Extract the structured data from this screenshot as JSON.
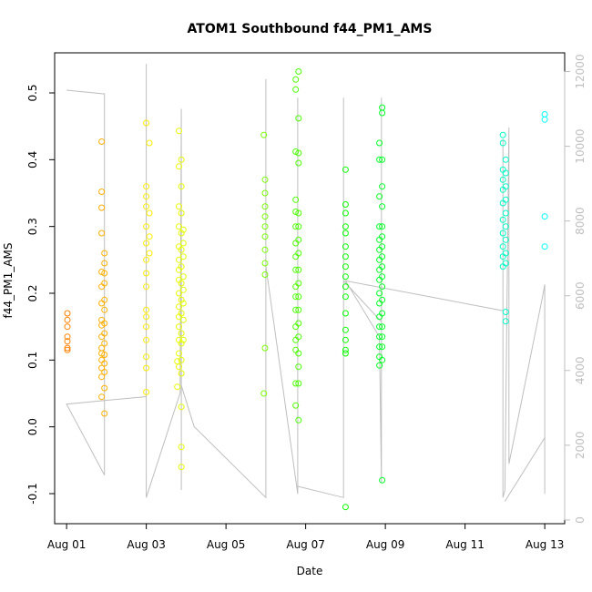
{
  "chart_data": {
    "type": "scatter",
    "title": "ATOM1 Southbound f44_PM1_AMS",
    "xlabel": "Date",
    "ylabel": "f44_PM1_AMS",
    "x_unit": "days since Aug 01",
    "xlim": [
      -0.3,
      12.5
    ],
    "ylim": [
      -0.145,
      0.56
    ],
    "x_ticks": [
      0,
      2,
      4,
      6,
      8,
      10,
      12
    ],
    "x_tick_labels": [
      "Aug 01",
      "Aug 03",
      "Aug 05",
      "Aug 07",
      "Aug 09",
      "Aug 11",
      "Aug 13"
    ],
    "y_ticks": [
      -0.1,
      0.0,
      0.1,
      0.2,
      0.3,
      0.4,
      0.5
    ],
    "y_tick_labels": [
      "-0.1",
      "0.0",
      "0.1",
      "0.2",
      "0.3",
      "0.4",
      "0.5"
    ],
    "secondary_y": {
      "ylim": [
        -100,
        12500
      ],
      "ticks": [
        0,
        2000,
        4000,
        6000,
        8000,
        10000,
        12000
      ],
      "tick_labels": [
        "0",
        "2000",
        "4000",
        "6000",
        "8000",
        "10000",
        "12000"
      ],
      "color": "#bebebe"
    },
    "grid": false,
    "color_note": "marker hue runs orange to cyan over time",
    "series": [
      {
        "name": "f44_PM1_AMS",
        "marker": "open-circle",
        "points": [
          [
            0.02,
            0.17
          ],
          [
            0.02,
            0.16
          ],
          [
            0.02,
            0.15
          ],
          [
            0.02,
            0.135
          ],
          [
            0.02,
            0.128
          ],
          [
            0.02,
            0.118
          ],
          [
            0.02,
            0.115
          ],
          [
            0.88,
            0.427
          ],
          [
            0.88,
            0.352
          ],
          [
            0.88,
            0.328
          ],
          [
            0.88,
            0.29
          ],
          [
            0.88,
            0.232
          ],
          [
            0.88,
            0.21
          ],
          [
            0.88,
            0.185
          ],
          [
            0.88,
            0.16
          ],
          [
            0.88,
            0.152
          ],
          [
            0.88,
            0.135
          ],
          [
            0.88,
            0.118
          ],
          [
            0.88,
            0.11
          ],
          [
            0.88,
            0.1
          ],
          [
            0.88,
            0.088
          ],
          [
            0.88,
            0.075
          ],
          [
            0.88,
            0.045
          ],
          [
            0.95,
            0.26
          ],
          [
            0.95,
            0.245
          ],
          [
            0.95,
            0.23
          ],
          [
            0.95,
            0.215
          ],
          [
            0.95,
            0.19
          ],
          [
            0.95,
            0.175
          ],
          [
            0.95,
            0.155
          ],
          [
            0.95,
            0.14
          ],
          [
            0.95,
            0.125
          ],
          [
            0.95,
            0.108
          ],
          [
            0.95,
            0.095
          ],
          [
            0.95,
            0.082
          ],
          [
            0.95,
            0.058
          ],
          [
            0.95,
            0.02
          ],
          [
            2.0,
            0.455
          ],
          [
            2.0,
            0.36
          ],
          [
            2.0,
            0.345
          ],
          [
            2.0,
            0.33
          ],
          [
            2.0,
            0.3
          ],
          [
            2.0,
            0.275
          ],
          [
            2.0,
            0.25
          ],
          [
            2.0,
            0.23
          ],
          [
            2.0,
            0.21
          ],
          [
            2.0,
            0.175
          ],
          [
            2.0,
            0.165
          ],
          [
            2.0,
            0.15
          ],
          [
            2.0,
            0.13
          ],
          [
            2.0,
            0.105
          ],
          [
            2.0,
            0.088
          ],
          [
            2.0,
            0.052
          ],
          [
            2.08,
            0.425
          ],
          [
            2.08,
            0.32
          ],
          [
            2.08,
            0.285
          ],
          [
            2.08,
            0.26
          ],
          [
            2.78,
            0.098
          ],
          [
            2.78,
            0.06
          ],
          [
            2.82,
            0.443
          ],
          [
            2.82,
            0.39
          ],
          [
            2.82,
            0.33
          ],
          [
            2.82,
            0.3
          ],
          [
            2.82,
            0.27
          ],
          [
            2.82,
            0.25
          ],
          [
            2.82,
            0.235
          ],
          [
            2.82,
            0.22
          ],
          [
            2.82,
            0.2
          ],
          [
            2.82,
            0.18
          ],
          [
            2.82,
            0.165
          ],
          [
            2.82,
            0.15
          ],
          [
            2.82,
            0.13
          ],
          [
            2.82,
            0.11
          ],
          [
            2.82,
            0.09
          ],
          [
            2.88,
            0.4
          ],
          [
            2.88,
            0.36
          ],
          [
            2.88,
            0.32
          ],
          [
            2.88,
            0.29
          ],
          [
            2.88,
            0.265
          ],
          [
            2.88,
            0.24
          ],
          [
            2.88,
            0.215
          ],
          [
            2.88,
            0.19
          ],
          [
            2.88,
            0.17
          ],
          [
            2.88,
            0.14
          ],
          [
            2.88,
            0.125
          ],
          [
            2.88,
            0.1
          ],
          [
            2.88,
            0.08
          ],
          [
            2.88,
            0.03
          ],
          [
            2.88,
            -0.03
          ],
          [
            2.88,
            -0.06
          ],
          [
            2.93,
            0.295
          ],
          [
            2.93,
            0.275
          ],
          [
            2.93,
            0.255
          ],
          [
            2.93,
            0.225
          ],
          [
            2.93,
            0.205
          ],
          [
            2.93,
            0.185
          ],
          [
            2.93,
            0.16
          ],
          [
            2.93,
            0.13
          ],
          [
            4.95,
            0.437
          ],
          [
            4.95,
            0.05
          ],
          [
            4.98,
            0.37
          ],
          [
            4.98,
            0.35
          ],
          [
            4.98,
            0.33
          ],
          [
            4.98,
            0.315
          ],
          [
            4.98,
            0.3
          ],
          [
            4.98,
            0.285
          ],
          [
            4.98,
            0.265
          ],
          [
            4.98,
            0.245
          ],
          [
            4.98,
            0.228
          ],
          [
            4.98,
            0.118
          ],
          [
            5.75,
            0.52
          ],
          [
            5.75,
            0.505
          ],
          [
            5.75,
            0.412
          ],
          [
            5.75,
            0.34
          ],
          [
            5.75,
            0.322
          ],
          [
            5.75,
            0.3
          ],
          [
            5.75,
            0.275
          ],
          [
            5.75,
            0.255
          ],
          [
            5.75,
            0.235
          ],
          [
            5.75,
            0.21
          ],
          [
            5.75,
            0.195
          ],
          [
            5.75,
            0.175
          ],
          [
            5.75,
            0.15
          ],
          [
            5.75,
            0.13
          ],
          [
            5.75,
            0.115
          ],
          [
            5.75,
            0.065
          ],
          [
            5.75,
            0.032
          ],
          [
            5.82,
            0.532
          ],
          [
            5.82,
            0.462
          ],
          [
            5.82,
            0.41
          ],
          [
            5.82,
            0.395
          ],
          [
            5.82,
            0.32
          ],
          [
            5.82,
            0.3
          ],
          [
            5.82,
            0.28
          ],
          [
            5.82,
            0.26
          ],
          [
            5.82,
            0.235
          ],
          [
            5.82,
            0.215
          ],
          [
            5.82,
            0.195
          ],
          [
            5.82,
            0.175
          ],
          [
            5.82,
            0.155
          ],
          [
            5.82,
            0.135
          ],
          [
            5.82,
            0.11
          ],
          [
            5.82,
            0.09
          ],
          [
            5.82,
            0.065
          ],
          [
            5.82,
            0.01
          ],
          [
            7.0,
            0.385
          ],
          [
            7.0,
            0.333
          ],
          [
            7.0,
            0.32
          ],
          [
            7.0,
            0.3
          ],
          [
            7.0,
            0.29
          ],
          [
            7.0,
            0.27
          ],
          [
            7.0,
            0.255
          ],
          [
            7.0,
            0.24
          ],
          [
            7.0,
            0.225
          ],
          [
            7.0,
            0.21
          ],
          [
            7.0,
            0.195
          ],
          [
            7.0,
            0.17
          ],
          [
            7.0,
            0.145
          ],
          [
            7.0,
            0.13
          ],
          [
            7.0,
            0.115
          ],
          [
            7.0,
            0.11
          ],
          [
            7.0,
            -0.12
          ],
          [
            7.85,
            0.425
          ],
          [
            7.85,
            0.4
          ],
          [
            7.85,
            0.345
          ],
          [
            7.85,
            0.3
          ],
          [
            7.85,
            0.28
          ],
          [
            7.85,
            0.265
          ],
          [
            7.85,
            0.25
          ],
          [
            7.85,
            0.235
          ],
          [
            7.85,
            0.22
          ],
          [
            7.85,
            0.2
          ],
          [
            7.85,
            0.185
          ],
          [
            7.85,
            0.165
          ],
          [
            7.85,
            0.15
          ],
          [
            7.85,
            0.135
          ],
          [
            7.85,
            0.12
          ],
          [
            7.85,
            0.105
          ],
          [
            7.85,
            0.092
          ],
          [
            7.92,
            0.478
          ],
          [
            7.92,
            0.47
          ],
          [
            7.92,
            0.4
          ],
          [
            7.92,
            0.36
          ],
          [
            7.92,
            0.33
          ],
          [
            7.92,
            0.3
          ],
          [
            7.92,
            0.285
          ],
          [
            7.92,
            0.27
          ],
          [
            7.92,
            0.255
          ],
          [
            7.92,
            0.24
          ],
          [
            7.92,
            0.225
          ],
          [
            7.92,
            0.21
          ],
          [
            7.92,
            0.19
          ],
          [
            7.92,
            0.17
          ],
          [
            7.92,
            0.15
          ],
          [
            7.92,
            0.135
          ],
          [
            7.92,
            0.12
          ],
          [
            7.92,
            0.1
          ],
          [
            7.92,
            -0.08
          ],
          [
            10.95,
            0.437
          ],
          [
            10.95,
            0.425
          ],
          [
            10.95,
            0.385
          ],
          [
            10.95,
            0.37
          ],
          [
            10.95,
            0.355
          ],
          [
            10.95,
            0.335
          ],
          [
            10.95,
            0.31
          ],
          [
            10.95,
            0.29
          ],
          [
            10.95,
            0.27
          ],
          [
            10.95,
            0.255
          ],
          [
            10.95,
            0.24
          ],
          [
            11.02,
            0.4
          ],
          [
            11.02,
            0.38
          ],
          [
            11.02,
            0.36
          ],
          [
            11.02,
            0.34
          ],
          [
            11.02,
            0.32
          ],
          [
            11.02,
            0.3
          ],
          [
            11.02,
            0.28
          ],
          [
            11.02,
            0.26
          ],
          [
            11.02,
            0.245
          ],
          [
            11.02,
            0.172
          ],
          [
            11.02,
            0.158
          ],
          [
            12.0,
            0.468
          ],
          [
            12.0,
            0.46
          ],
          [
            12.0,
            0.315
          ],
          [
            12.0,
            0.27
          ]
        ]
      },
      {
        "name": "secondary (gray line)",
        "axis": "right",
        "color": "#bebebe",
        "points": [
          [
            0.0,
            11500
          ],
          [
            0.95,
            11400
          ],
          [
            0.95,
            1800
          ],
          [
            0.95,
            11400
          ],
          [
            0.95,
            1200
          ],
          [
            0.0,
            3100
          ],
          [
            2.0,
            3300
          ],
          [
            2.0,
            12200
          ],
          [
            2.0,
            600
          ],
          [
            2.85,
            3400
          ],
          [
            2.88,
            11000
          ],
          [
            2.88,
            800
          ],
          [
            2.88,
            3600
          ],
          [
            3.2,
            2500
          ],
          [
            5.0,
            600
          ],
          [
            5.0,
            11800
          ],
          [
            5.0,
            6800
          ],
          [
            5.8,
            700
          ],
          [
            5.8,
            11300
          ],
          [
            5.8,
            900
          ],
          [
            6.95,
            600
          ],
          [
            6.95,
            11300
          ],
          [
            6.95,
            6400
          ],
          [
            7.9,
            5300
          ],
          [
            7.9,
            11300
          ],
          [
            7.9,
            1000
          ],
          [
            7.85,
            4900
          ],
          [
            7.0,
            6400
          ],
          [
            10.95,
            5600
          ],
          [
            10.95,
            10200
          ],
          [
            10.95,
            600
          ],
          [
            11.0,
            800
          ],
          [
            11.1,
            10500
          ],
          [
            11.1,
            1500
          ],
          [
            11.95,
            6000
          ],
          [
            12.0,
            6300
          ],
          [
            12.0,
            700
          ],
          [
            12.0,
            2200
          ],
          [
            11.0,
            500
          ]
        ]
      }
    ]
  }
}
